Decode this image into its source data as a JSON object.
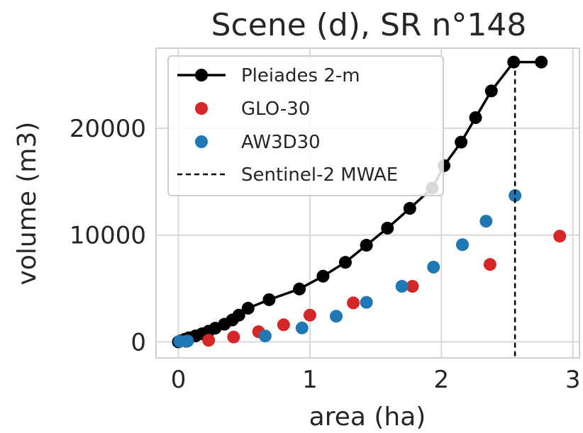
{
  "chart_data": {
    "type": "line",
    "title": "Scene (d), SR n°148",
    "xlabel": "area (ha)",
    "ylabel": "volume (m3)",
    "xlim": [
      -0.17,
      3.05
    ],
    "ylim": [
      -1500,
      27500
    ],
    "xticks": [
      0,
      1,
      2,
      3
    ],
    "yticks": [
      0,
      10000,
      20000
    ],
    "xtick_labels": [
      "0",
      "1",
      "2",
      "3"
    ],
    "ytick_labels": [
      "0",
      "10000",
      "20000"
    ],
    "grid": true,
    "legend_position": "upper-left",
    "colors": {
      "pleiades": "#000000",
      "glo30": "#d62728",
      "aw3d30": "#1f77b4",
      "mwae": "#000000"
    },
    "series": [
      {
        "name": "Pleiades 2-m",
        "style": "line-marker",
        "x": [
          0.0,
          0.02,
          0.05,
          0.08,
          0.13,
          0.18,
          0.23,
          0.28,
          0.35,
          0.41,
          0.46,
          0.53,
          0.69,
          0.92,
          1.1,
          1.27,
          1.43,
          1.59,
          1.76,
          1.93,
          2.02,
          2.15,
          2.26,
          2.38,
          2.55,
          2.76
        ],
        "y": [
          0,
          120,
          250,
          380,
          560,
          760,
          1000,
          1280,
          1650,
          2050,
          2500,
          3150,
          3950,
          4950,
          6150,
          7450,
          9050,
          10650,
          12500,
          14400,
          16500,
          18700,
          21000,
          23500,
          26200,
          26200
        ]
      },
      {
        "name": "GLO-30",
        "style": "marker",
        "x": [
          0.06,
          0.23,
          0.42,
          0.61,
          0.8,
          1.0,
          1.33,
          1.78,
          2.37,
          2.9
        ],
        "y": [
          50,
          150,
          450,
          950,
          1600,
          2500,
          3650,
          5200,
          7250,
          9900
        ]
      },
      {
        "name": "AW3D30",
        "style": "marker",
        "x": [
          0.01,
          0.07,
          0.66,
          0.94,
          1.2,
          1.43,
          1.7,
          1.94,
          2.16,
          2.34,
          2.56
        ],
        "y": [
          50,
          80,
          550,
          1300,
          2400,
          3700,
          5200,
          7000,
          9100,
          11300,
          13700
        ]
      },
      {
        "name": "Sentinel-2 MWAE",
        "style": "vline",
        "x": 2.56
      }
    ]
  }
}
